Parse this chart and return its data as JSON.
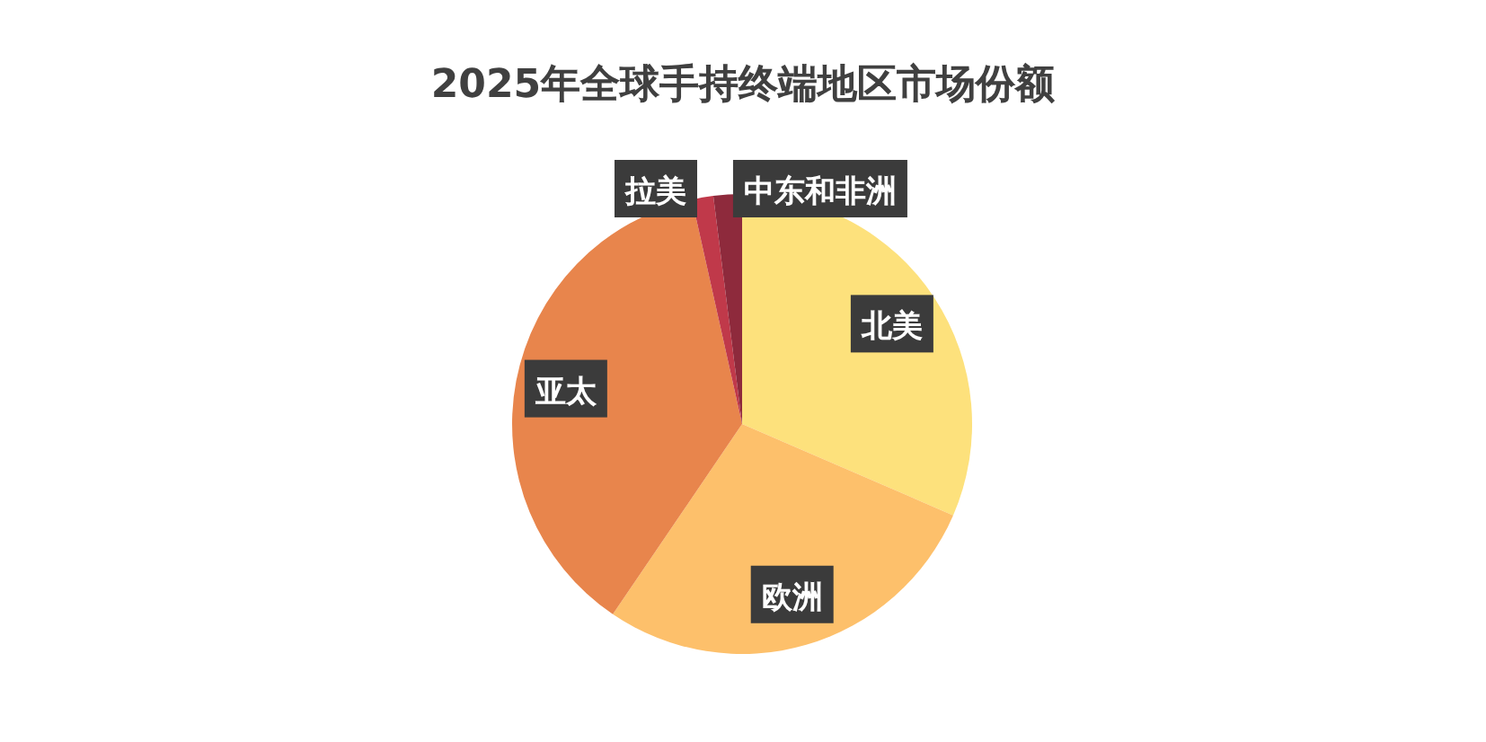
{
  "chart_data": {
    "type": "pie",
    "title": "2025年全球手持终端地区市场份额",
    "categories": [
      "北美",
      "欧洲",
      "亚太",
      "拉美",
      "中东和非洲"
    ],
    "values": [
      31.5,
      28,
      37,
      1.5,
      2
    ],
    "colors": [
      "#fde17c",
      "#fdc06b",
      "#e8854c",
      "#c0394a",
      "#8e2a3c"
    ]
  }
}
